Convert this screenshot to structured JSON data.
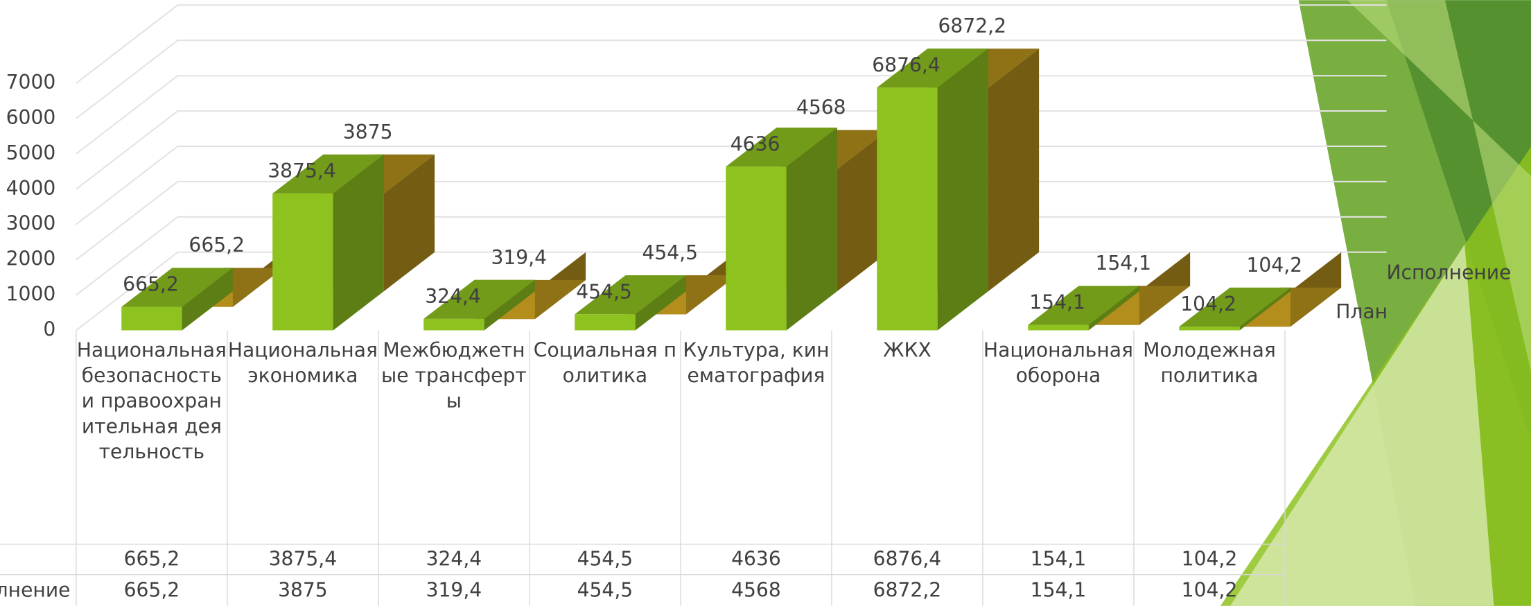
{
  "chart_data": {
    "type": "bar3d",
    "categories": [
      "Национальная безопасность и правоохранительная деятельность",
      "Национальная экономика",
      "Межбюджетные трансферты",
      "Социальная политика",
      "Культура, кинематография",
      "ЖКХ",
      "Национальная оборона",
      "Молодежная политика"
    ],
    "series": [
      {
        "name": "План",
        "color": "#8dc21f",
        "values": [
          665.2,
          3875.4,
          324.4,
          454.5,
          4636,
          6876.4,
          154.1,
          104.2
        ],
        "value_labels": [
          "665,2",
          "3875,4",
          "324,4",
          "454,5",
          "4636",
          "6876,4",
          "154,1",
          "104,2"
        ]
      },
      {
        "name": "Исполнение",
        "color": "#b38e1c",
        "values": [
          665.2,
          3875,
          319.4,
          454.5,
          4568,
          6872.2,
          154.1,
          104.2
        ],
        "value_labels": [
          "665,2",
          "3875",
          "319,4",
          "454,5",
          "4568",
          "6872,2",
          "154,1",
          "104,2"
        ]
      }
    ],
    "ylim": [
      0,
      7000
    ],
    "yticks": [
      0,
      1000,
      2000,
      3000,
      4000,
      5000,
      6000,
      7000
    ],
    "grid": true
  }
}
